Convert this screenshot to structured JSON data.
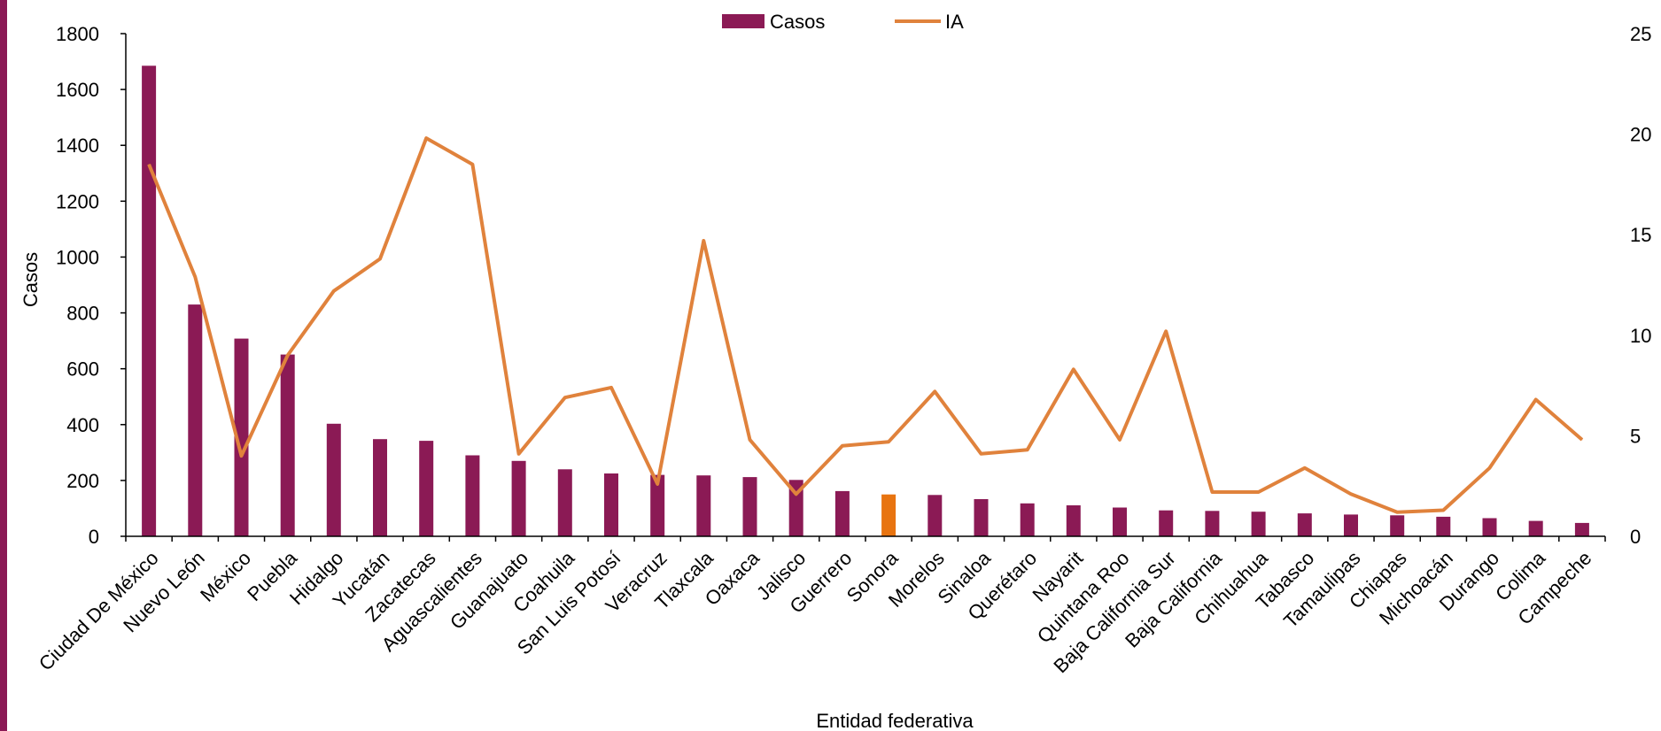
{
  "chart_data": {
    "type": "bar",
    "title": "",
    "xlabel": "Entidad federativa",
    "ylabel": "Casos",
    "ylim": [
      0,
      1800
    ],
    "y_ticks": [
      0,
      200,
      400,
      600,
      800,
      1000,
      1200,
      1400,
      1600,
      1800
    ],
    "y2lim": [
      0,
      25
    ],
    "y2_ticks": [
      0,
      5,
      10,
      15,
      20,
      25
    ],
    "grid": false,
    "legend_position": "top-center",
    "categories": [
      "Ciudad De México",
      "Nuevo León",
      "México",
      "Puebla",
      "Hidalgo",
      "Yucatán",
      "Zacatecas",
      "Aguascalientes",
      "Guanajuato",
      "Coahuila",
      "San Luis Potosí",
      "Veracruz",
      "Tlaxcala",
      "Oaxaca",
      "Jalisco",
      "Guerrero",
      "Sonora",
      "Morelos",
      "Sinaloa",
      "Querétaro",
      "Nayarit",
      "Quintana Roo",
      "Baja California Sur",
      "Baja California",
      "Chihuahua",
      "Tabasco",
      "Tamaulipas",
      "Chiapas",
      "Michoacán",
      "Durango",
      "Colima",
      "Campeche"
    ],
    "series": [
      {
        "name": "Casos",
        "type": "bar",
        "axis": "left",
        "color": "#8B1A55",
        "values": [
          1685,
          830,
          708,
          651,
          403,
          348,
          342,
          290,
          270,
          240,
          225,
          220,
          218,
          212,
          202,
          162,
          150,
          148,
          133,
          118,
          111,
          103,
          93,
          91,
          88,
          82,
          78,
          75,
          70,
          65,
          55,
          48
        ]
      },
      {
        "name": "IA",
        "type": "line",
        "axis": "right",
        "color": "#E0823C",
        "values": [
          18.5,
          12.9,
          4.0,
          9.0,
          12.2,
          13.8,
          19.8,
          18.5,
          4.1,
          6.9,
          7.4,
          2.6,
          14.7,
          4.8,
          2.1,
          4.5,
          4.7,
          7.2,
          4.1,
          4.3,
          8.3,
          4.8,
          10.2,
          2.2,
          2.2,
          3.4,
          2.1,
          1.2,
          1.3,
          3.4,
          6.8,
          4.8
        ]
      }
    ],
    "highlight": {
      "category": "Sonora",
      "color": "#E87410"
    }
  }
}
